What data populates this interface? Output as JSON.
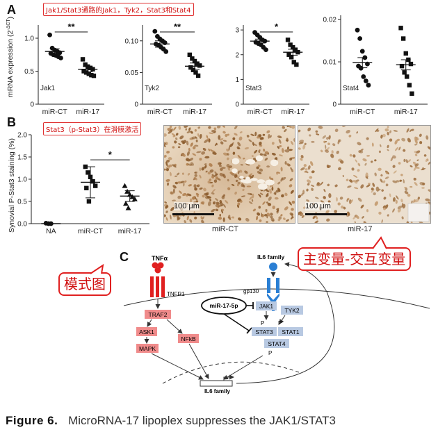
{
  "panel_a": {
    "label": "A",
    "callout": "Jak1/Stat3通路的Jak1，Tyk2，Stat3和Stat4",
    "ylabel": "mRNA expression (2",
    "ylabel_sup": "-ΔCT",
    "ylabel_end": ")"
  },
  "panel_b": {
    "label": "B",
    "callout": "Stat3（p-Stat3）在滑膜激活",
    "ylabel": "Synovial P-Stat3 staining (%)",
    "image_left_label": "miR-CT",
    "image_right_label": "miR-17",
    "scale_left": "100 μm",
    "scale_right": "100 μm"
  },
  "panel_c": {
    "label": "C",
    "callout_left": "模式图",
    "callout_right": "主变量-交互变量",
    "nodes": {
      "tnfa": "TNFα",
      "tnfr1": "TNFR1",
      "traf2": "TRAF2",
      "ask1": "ASK1",
      "mapk": "MAPK",
      "nfkb": "NFkB",
      "il6_family_top": "IL6 family",
      "gp130": "gp130",
      "mir175p": "miR-17-5p",
      "jak1": "JAK1",
      "tyk2": "TYK2",
      "stat3": "STAT3",
      "stat1": "STAT1",
      "stat4": "STAT4",
      "p": "P",
      "il6_family_gene": "IL6 family"
    },
    "colors": {
      "red_box": "#f08b8b",
      "blue_box": "#b8c9e2",
      "tnf_red": "#e02020",
      "il6_blue": "#2a7fd4"
    }
  },
  "caption": {
    "label": "Figure 6.",
    "text": "MicroRNA-17 lipoplex suppresses the JAK1/STAT3"
  },
  "chart_data": [
    {
      "type": "scatter",
      "name": "Jak1",
      "title": "Jak1",
      "categories": [
        "miR-CT",
        "miR-17"
      ],
      "ylim": [
        0,
        1.2
      ],
      "yticks": [
        0,
        0.5,
        1.0
      ],
      "ytick_labels": [
        "0",
        "0.5",
        "1.0"
      ],
      "significance": "**",
      "series": [
        {
          "category": "miR-CT",
          "marker": "circle",
          "mean": 0.8,
          "sem": 0.04,
          "values": [
            1.05,
            0.85,
            0.82,
            0.8,
            0.78,
            0.77,
            0.75,
            0.74,
            0.72,
            0.7
          ]
        },
        {
          "category": "miR-17",
          "marker": "square",
          "mean": 0.53,
          "sem": 0.04,
          "values": [
            0.68,
            0.6,
            0.57,
            0.55,
            0.53,
            0.5,
            0.48,
            0.46,
            0.44,
            0.43
          ]
        }
      ]
    },
    {
      "type": "scatter",
      "name": "Tyk2",
      "title": "Tyk2",
      "categories": [
        "miR-CT",
        "miR-17"
      ],
      "ylim": [
        0,
        0.125
      ],
      "yticks": [
        0,
        0.05,
        0.1
      ],
      "ytick_labels": [
        "0",
        "0.05",
        "0.10"
      ],
      "significance": "**",
      "series": [
        {
          "category": "miR-CT",
          "marker": "circle",
          "mean": 0.095,
          "sem": 0.005,
          "values": [
            0.115,
            0.107,
            0.103,
            0.1,
            0.097,
            0.095,
            0.093,
            0.09,
            0.087,
            0.083
          ]
        },
        {
          "category": "miR-17",
          "marker": "square",
          "mean": 0.06,
          "sem": 0.005,
          "values": [
            0.078,
            0.072,
            0.068,
            0.064,
            0.061,
            0.058,
            0.054,
            0.05,
            0.045
          ]
        }
      ]
    },
    {
      "type": "scatter",
      "name": "Stat3",
      "title": "Stat3",
      "categories": [
        "miR-CT",
        "miR-17"
      ],
      "ylim": [
        0,
        3.2
      ],
      "yticks": [
        0,
        1,
        2,
        3
      ],
      "ytick_labels": [
        "0",
        "1",
        "2",
        "3"
      ],
      "significance": "*",
      "series": [
        {
          "category": "miR-CT",
          "marker": "circle",
          "mean": 2.55,
          "sem": 0.08,
          "values": [
            2.9,
            2.8,
            2.7,
            2.6,
            2.55,
            2.5,
            2.45,
            2.4,
            2.3,
            2.2
          ]
        },
        {
          "category": "miR-17",
          "marker": "square",
          "mean": 2.1,
          "sem": 0.12,
          "values": [
            2.6,
            2.4,
            2.3,
            2.2,
            2.1,
            2.0,
            1.9,
            1.7,
            1.6
          ]
        }
      ]
    },
    {
      "type": "scatter",
      "name": "Stat4",
      "title": "Stat4",
      "categories": [
        "miR-CT",
        "miR-17"
      ],
      "ylim": [
        0,
        0.021
      ],
      "yticks": [
        0,
        0.01,
        0.02
      ],
      "ytick_labels": [
        "0",
        "0.01",
        "0.02"
      ],
      "significance": "",
      "series": [
        {
          "category": "miR-CT",
          "marker": "circle",
          "mean": 0.0098,
          "sem": 0.0012,
          "values": [
            0.0175,
            0.0155,
            0.0125,
            0.011,
            0.0095,
            0.009,
            0.0085,
            0.0065,
            0.0055,
            0.0045
          ]
        },
        {
          "category": "miR-17",
          "marker": "square",
          "mean": 0.0093,
          "sem": 0.0012,
          "values": [
            0.018,
            0.0155,
            0.012,
            0.0105,
            0.0095,
            0.009,
            0.0075,
            0.0065,
            0.0045,
            0.0025
          ]
        }
      ]
    },
    {
      "type": "scatter",
      "name": "P-Stat3",
      "categories": [
        "NA",
        "miR-CT",
        "miR-17"
      ],
      "ylim": [
        0,
        2.0
      ],
      "yticks": [
        0,
        0.5,
        1.0,
        1.5,
        2.0
      ],
      "ytick_labels": [
        "0.0",
        "0.5",
        "1.0",
        "1.5",
        "2.0"
      ],
      "ylabel": "Synovial P-Stat3 staining (%)",
      "significance": "*",
      "series": [
        {
          "category": "NA",
          "marker": "circle",
          "mean": 0.0,
          "sem": 0.0,
          "values": [
            0.01,
            0.0,
            0.0
          ]
        },
        {
          "category": "miR-CT",
          "marker": "square",
          "mean": 0.93,
          "sem": 0.35,
          "values": [
            1.28,
            1.15,
            1.05,
            0.95,
            0.85,
            0.8,
            0.5
          ]
        },
        {
          "category": "miR-17",
          "marker": "triangle",
          "mean": 0.62,
          "sem": 0.12,
          "values": [
            0.85,
            0.72,
            0.65,
            0.6,
            0.55,
            0.45,
            0.35
          ]
        }
      ]
    }
  ]
}
